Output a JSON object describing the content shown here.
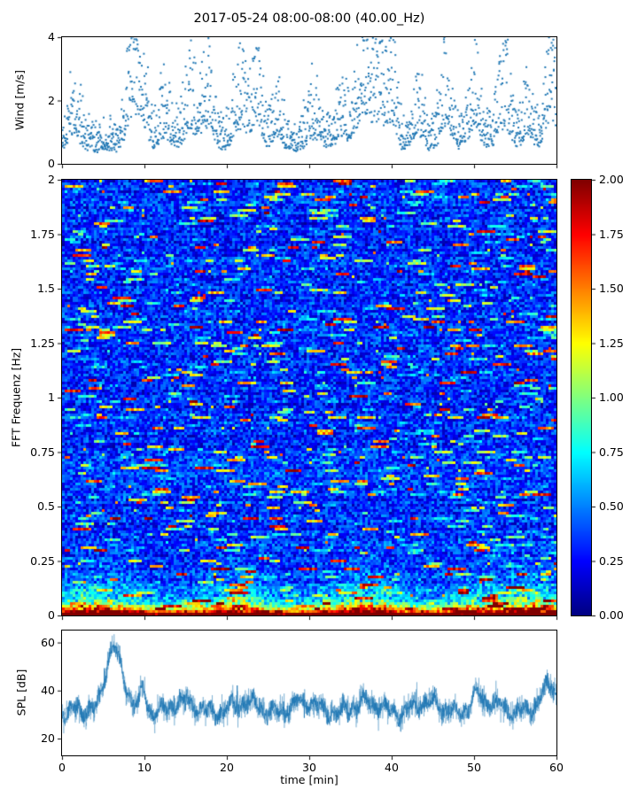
{
  "title": "2017-05-24 08:00-08:00 (40.00_Hz)",
  "figure": {
    "xlabel": "time [min]",
    "xlim": [
      0,
      60
    ],
    "xticks": [
      0,
      10,
      20,
      30,
      40,
      50,
      60
    ],
    "xtick_labels": [
      "0",
      "10",
      "20",
      "30",
      "40",
      "50",
      "60"
    ]
  },
  "chart_data": [
    {
      "type": "scatter",
      "name": "wind",
      "ylabel": "Wind [m/s]",
      "ylim": [
        0,
        4
      ],
      "yticks": [
        0,
        2,
        4
      ],
      "ytick_labels": [
        "0",
        "2",
        "4"
      ],
      "xlim": [
        0,
        60
      ],
      "marker_color": "#1f77b4",
      "baseline_ms": 0.7,
      "description": "Wind speed scatter: baseline 0.3-1.3 m/s with gusty bursts reaching up to 4 m/s",
      "bursts": [
        {
          "t": 1.5,
          "a": 1.1,
          "w": 0.8
        },
        {
          "t": 8.6,
          "a": 3.1,
          "w": 0.7
        },
        {
          "t": 9.9,
          "a": 1.6,
          "w": 0.5
        },
        {
          "t": 12.5,
          "a": 1.2,
          "w": 0.7
        },
        {
          "t": 15.5,
          "a": 1.5,
          "w": 0.8
        },
        {
          "t": 17.6,
          "a": 2.0,
          "w": 0.7
        },
        {
          "t": 21.6,
          "a": 1.9,
          "w": 0.8
        },
        {
          "t": 23.6,
          "a": 2.2,
          "w": 0.6
        },
        {
          "t": 26.0,
          "a": 1.2,
          "w": 0.6
        },
        {
          "t": 30.5,
          "a": 1.1,
          "w": 0.8
        },
        {
          "t": 34.0,
          "a": 1.3,
          "w": 0.6
        },
        {
          "t": 36.6,
          "a": 2.6,
          "w": 0.9
        },
        {
          "t": 38.6,
          "a": 2.4,
          "w": 0.8
        },
        {
          "t": 40.2,
          "a": 1.6,
          "w": 0.5
        },
        {
          "t": 43.2,
          "a": 1.5,
          "w": 0.6
        },
        {
          "t": 46.6,
          "a": 2.1,
          "w": 0.7
        },
        {
          "t": 50.0,
          "a": 1.8,
          "w": 0.7
        },
        {
          "t": 53.6,
          "a": 2.0,
          "w": 0.8
        },
        {
          "t": 56.5,
          "a": 1.4,
          "w": 0.6
        },
        {
          "t": 59.4,
          "a": 2.9,
          "w": 0.7
        }
      ]
    },
    {
      "type": "heatmap",
      "name": "spectrogram",
      "ylabel": "FFT Frequenz [Hz]",
      "ylim": [
        0,
        2
      ],
      "yticks": [
        0,
        0.25,
        0.5,
        0.75,
        1,
        1.25,
        1.5,
        1.75,
        2
      ],
      "ytick_labels": [
        "0",
        "0.25",
        "0.5",
        "0.75",
        "1",
        "1.25",
        "1.5",
        "1.75",
        "2"
      ],
      "xlim": [
        0,
        60
      ],
      "colormap": "jet",
      "clim": [
        0,
        2
      ],
      "background_level": 0.32,
      "noise_amp": 0.22,
      "description": "Mostly blue background (0.2-0.6) with horizontal cyan/green/yellow streaks; strong red band (1.7-2.0) below 0.05 Hz fading through orange/yellow/green up to ~0.2 Hz",
      "low_freq_peak": {
        "level": 1.9,
        "scale_hz": 0.03
      },
      "clusters": [
        {
          "t": 4,
          "a": 1.0,
          "w": 3.0
        },
        {
          "t": 21,
          "a": 0.8,
          "w": 2.5
        },
        {
          "t": 37,
          "a": 0.9,
          "w": 3.0
        },
        {
          "t": 50,
          "a": 0.7,
          "w": 2.0
        },
        {
          "t": 57,
          "a": 1.0,
          "w": 2.5
        }
      ],
      "colorbar": {
        "ticks": [
          0,
          0.25,
          0.5,
          0.75,
          1,
          1.25,
          1.5,
          1.75,
          2
        ],
        "tick_labels": [
          "0.00",
          "0.25",
          "0.50",
          "0.75",
          "1.00",
          "1.25",
          "1.50",
          "1.75",
          "2.00"
        ]
      }
    },
    {
      "type": "line",
      "name": "spl",
      "ylabel": "SPL [dB]",
      "xlabel": "time [min]",
      "ylim": [
        13,
        65
      ],
      "yticks": [
        20,
        40,
        60
      ],
      "ytick_labels": [
        "20",
        "40",
        "60"
      ],
      "xlim": [
        0,
        60
      ],
      "line_color": "#1f77b4",
      "baseline_db": 33,
      "description": "Noisy SPL trace fluctuating 25-45 dB with a broad peak near 58-60 dB around minute 6 and a narrow spike near minute 10",
      "peaks": [
        {
          "t": 6.2,
          "a": 23,
          "w": 1.0
        },
        {
          "t": 9.9,
          "a": 9,
          "w": 0.3
        },
        {
          "t": 50.2,
          "a": 5,
          "w": 0.5
        },
        {
          "t": 59.3,
          "a": 7,
          "w": 0.9
        }
      ]
    }
  ]
}
